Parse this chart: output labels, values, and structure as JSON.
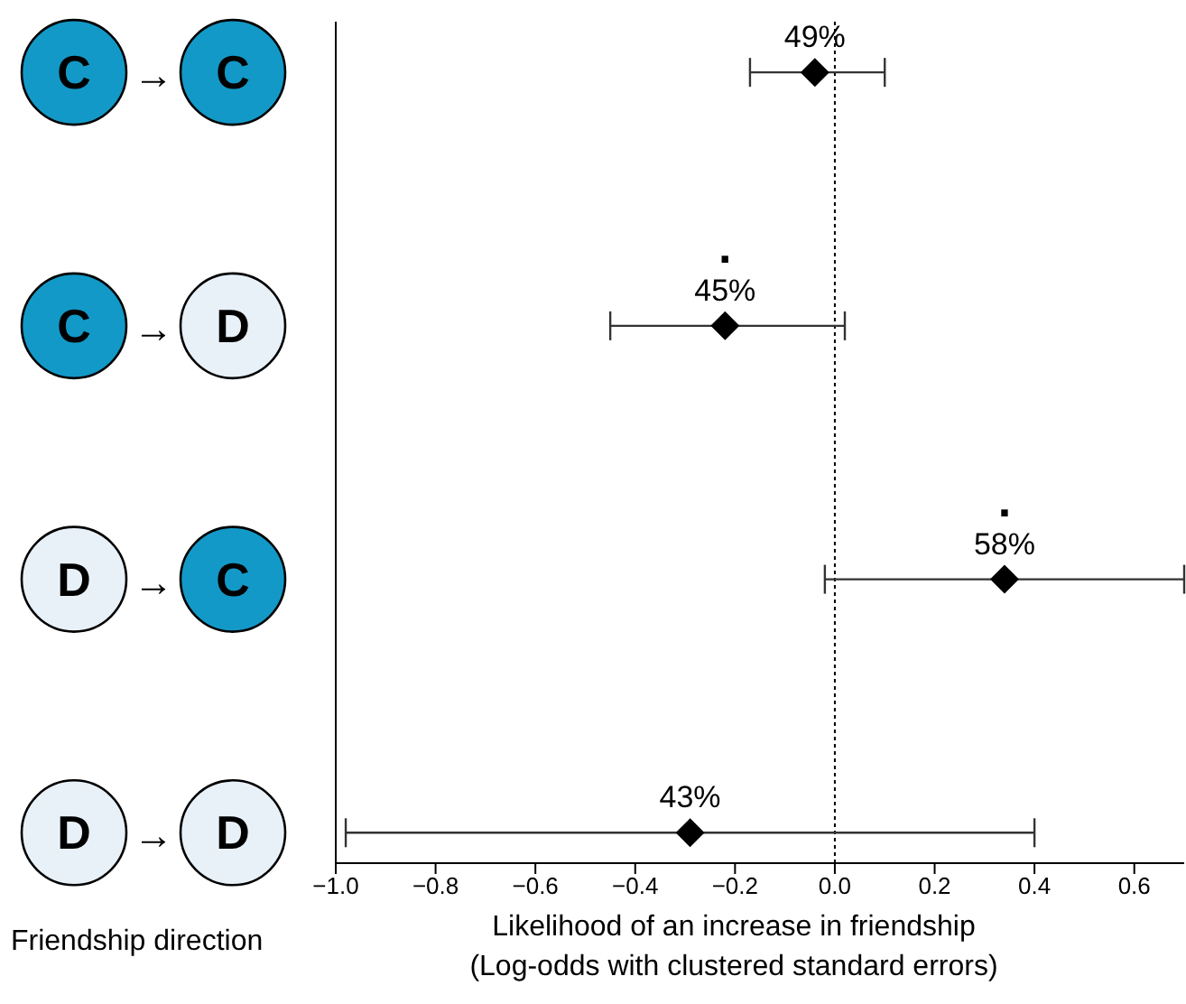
{
  "chart_data": {
    "type": "scatter",
    "orientation": "horizontal",
    "categories": [
      "C → C",
      "C → D",
      "D → C",
      "D → D"
    ],
    "values": [
      -0.04,
      -0.22,
      0.34,
      -0.29
    ],
    "errors": [
      [
        -0.17,
        0.1
      ],
      [
        -0.45,
        0.02
      ],
      [
        -0.02,
        0.7
      ],
      [
        -0.98,
        0.4
      ]
    ],
    "color": "#000000",
    "marker": "diamond",
    "xlim": [
      -1.0,
      0.7
    ],
    "xticks": [
      {
        "value": -1.0,
        "label": "−1.0"
      },
      {
        "value": -0.8,
        "label": "−0.8"
      },
      {
        "value": -0.6,
        "label": "−0.6"
      },
      {
        "value": -0.4,
        "label": "−0.4"
      },
      {
        "value": -0.2,
        "label": "−0.2"
      },
      {
        "value": 0.0,
        "label": "0.0"
      },
      {
        "value": 0.2,
        "label": "0.2"
      },
      {
        "value": 0.4,
        "label": "0.4"
      },
      {
        "value": 0.6,
        "label": "0.6"
      }
    ],
    "xlabel": "Likelihood of an increase in friendship\n(Log-odds with clustered standard errors)",
    "ylabel": "Friendship direction",
    "ref_lines": [
      {
        "axis": "x",
        "value": 0,
        "line_style": "dotted",
        "color": "#000000"
      }
    ],
    "annotations": [
      {
        "text": "49%",
        "x": -0.04,
        "y": "C → C"
      },
      {
        "text": "45%",
        "x": -0.22,
        "y": "C → D"
      },
      {
        "text": "58%",
        "x": 0.34,
        "y": "D → C"
      },
      {
        "text": "43%",
        "x": -0.29,
        "y": "D → D"
      },
      {
        "text": ".",
        "x": -0.22,
        "y": "C → D"
      },
      {
        "text": ".",
        "x": 0.34,
        "y": "D → C"
      }
    ],
    "grid": false
  }
}
